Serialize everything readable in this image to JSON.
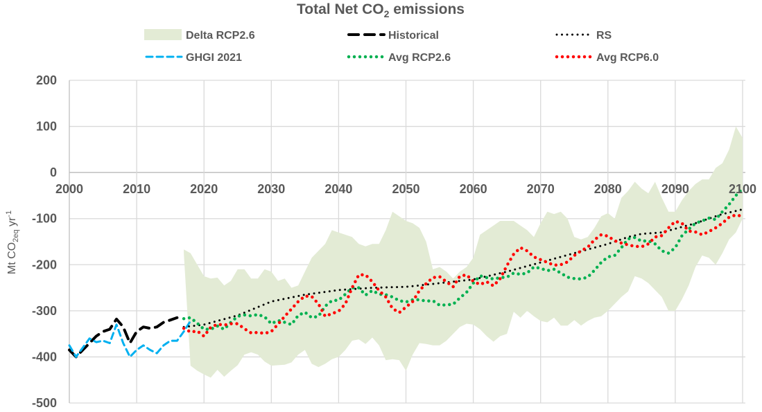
{
  "chart_data": {
    "type": "line",
    "title": "Total Net CO",
    "title_sub": "2",
    "title_rest": " emissions",
    "ylabel": {
      "main": "Mt CO",
      "sub": "2eq",
      "mid": " yr",
      "sup": "-1"
    },
    "xlabel": "",
    "xlim": [
      2000,
      2100
    ],
    "ylim": [
      -500,
      200
    ],
    "x_ticks": [
      "2000",
      "2010",
      "2020",
      "2030",
      "2040",
      "2050",
      "2060",
      "2070",
      "2080",
      "2090",
      "2100"
    ],
    "y_ticks": [
      "200",
      "100",
      "0",
      "-100",
      "-200",
      "-300",
      "-400",
      "-500"
    ],
    "grid": true,
    "legend_position": "top",
    "colors": {
      "band": "#e3ebd5",
      "historical": "#000000",
      "ghgi": "#00b0f0",
      "rs": "#000000",
      "avg26": "#00b050",
      "avg60": "#ff0000",
      "grid": "#d9d9d9",
      "text": "#595959"
    },
    "series": [
      {
        "name": "Delta RCP2.6",
        "kind": "band",
        "x": [
          2017,
          2018,
          2019,
          2020,
          2021,
          2022,
          2023,
          2024,
          2025,
          2026,
          2027,
          2028,
          2029,
          2030,
          2031,
          2032,
          2033,
          2034,
          2035,
          2036,
          2037,
          2038,
          2039,
          2040,
          2041,
          2042,
          2043,
          2044,
          2045,
          2046,
          2047,
          2048,
          2049,
          2050,
          2051,
          2052,
          2053,
          2054,
          2055,
          2056,
          2057,
          2058,
          2059,
          2060,
          2061,
          2062,
          2063,
          2064,
          2065,
          2066,
          2067,
          2068,
          2069,
          2070,
          2071,
          2072,
          2073,
          2074,
          2075,
          2076,
          2077,
          2078,
          2079,
          2080,
          2081,
          2082,
          2083,
          2084,
          2085,
          2086,
          2087,
          2088,
          2089,
          2090,
          2091,
          2092,
          2093,
          2094,
          2095,
          2096,
          2097,
          2098,
          2099,
          2100
        ],
        "upper": [
          -167,
          -175,
          -200,
          -225,
          -230,
          -228,
          -245,
          -235,
          -210,
          -210,
          -230,
          -230,
          -210,
          -215,
          -235,
          -230,
          -250,
          -245,
          -215,
          -185,
          -170,
          -155,
          -125,
          -130,
          -135,
          -140,
          -155,
          -160,
          -155,
          -155,
          -125,
          -85,
          -95,
          -105,
          -110,
          -120,
          -150,
          -210,
          -205,
          -215,
          -230,
          -215,
          -205,
          -185,
          -135,
          -125,
          -115,
          -105,
          -105,
          -105,
          -115,
          -125,
          -140,
          -110,
          -85,
          -90,
          -85,
          -100,
          -140,
          -145,
          -140,
          -120,
          -95,
          -88,
          -100,
          -55,
          -40,
          -20,
          -35,
          -45,
          -20,
          -55,
          -85,
          -85,
          -60,
          -40,
          -25,
          -15,
          -15,
          10,
          20,
          50,
          100,
          75
        ],
        "lower": [
          -175,
          -419,
          -430,
          -438,
          -445,
          -428,
          -443,
          -430,
          -418,
          -395,
          -390,
          -395,
          -410,
          -419,
          -418,
          -417,
          -412,
          -395,
          -385,
          -415,
          -422,
          -415,
          -405,
          -400,
          -385,
          -365,
          -362,
          -372,
          -358,
          -375,
          -407,
          -405,
          -407,
          -430,
          -395,
          -370,
          -372,
          -375,
          -375,
          -365,
          -350,
          -335,
          -328,
          -330,
          -340,
          -355,
          -367,
          -355,
          -350,
          -302,
          -315,
          -300,
          -312,
          -322,
          -325,
          -315,
          -332,
          -332,
          -320,
          -332,
          -322,
          -315,
          -312,
          -300,
          -285,
          -270,
          -258,
          -225,
          -230,
          -240,
          -255,
          -270,
          -300,
          -300,
          -275,
          -245,
          -205,
          -180,
          -185,
          -200,
          -175,
          -145,
          -130,
          -100
        ]
      },
      {
        "name": "Historical",
        "kind": "dash",
        "x": [
          2000,
          2001,
          2002,
          2003,
          2004,
          2005,
          2006,
          2007,
          2008,
          2009,
          2010,
          2011,
          2012,
          2013,
          2014,
          2015,
          2016
        ],
        "y": [
          -385,
          -400,
          -385,
          -370,
          -355,
          -345,
          -340,
          -318,
          -335,
          -370,
          -345,
          -335,
          -338,
          -335,
          -325,
          -320,
          -315
        ]
      },
      {
        "name": "RS",
        "kind": "dot",
        "x": [
          2017,
          2020,
          2025,
          2030,
          2035,
          2040,
          2045,
          2050,
          2052,
          2055,
          2060,
          2065,
          2070,
          2075,
          2080,
          2083,
          2085,
          2088,
          2090,
          2093,
          2095,
          2097,
          2100
        ],
        "y": [
          -335,
          -330,
          -310,
          -280,
          -265,
          -255,
          -250,
          -248,
          -245,
          -240,
          -232,
          -215,
          -195,
          -175,
          -155,
          -140,
          -133,
          -130,
          -122,
          -110,
          -100,
          -90,
          -80
        ]
      },
      {
        "name": "GHGI 2021",
        "kind": "dash",
        "x": [
          2000,
          2001,
          2002,
          2003,
          2004,
          2005,
          2006,
          2007,
          2008,
          2009,
          2010,
          2011,
          2012,
          2013,
          2014,
          2015,
          2016,
          2017,
          2018
        ],
        "y": [
          -375,
          -400,
          -380,
          -360,
          -368,
          -365,
          -370,
          -330,
          -370,
          -400,
          -385,
          -375,
          -385,
          -392,
          -375,
          -365,
          -365,
          -345,
          -322
        ]
      },
      {
        "name": "Avg RCP2.6",
        "kind": "dot",
        "x": [
          2017,
          2018,
          2019,
          2020,
          2021,
          2022,
          2023,
          2024,
          2025,
          2026,
          2027,
          2028,
          2029,
          2030,
          2031,
          2032,
          2033,
          2034,
          2035,
          2036,
          2037,
          2038,
          2039,
          2040,
          2041,
          2042,
          2043,
          2044,
          2045,
          2046,
          2047,
          2048,
          2049,
          2050,
          2051,
          2052,
          2053,
          2054,
          2055,
          2056,
          2057,
          2058,
          2059,
          2060,
          2061,
          2062,
          2063,
          2064,
          2065,
          2066,
          2067,
          2068,
          2069,
          2070,
          2071,
          2072,
          2073,
          2074,
          2075,
          2076,
          2077,
          2078,
          2079,
          2080,
          2081,
          2082,
          2083,
          2084,
          2085,
          2086,
          2087,
          2088,
          2089,
          2090,
          2091,
          2092,
          2093,
          2094,
          2095,
          2096,
          2097,
          2098,
          2099,
          2100
        ],
        "y": [
          -317,
          -315,
          -327,
          -340,
          -340,
          -333,
          -340,
          -325,
          -312,
          -309,
          -311,
          -308,
          -313,
          -328,
          -321,
          -325,
          -330,
          -310,
          -303,
          -315,
          -312,
          -290,
          -278,
          -277,
          -264,
          -250,
          -250,
          -266,
          -256,
          -264,
          -265,
          -270,
          -278,
          -281,
          -276,
          -276,
          -279,
          -278,
          -288,
          -287,
          -286,
          -272,
          -260,
          -240,
          -224,
          -228,
          -231,
          -228,
          -227,
          -218,
          -221,
          -218,
          -205,
          -208,
          -213,
          -210,
          -218,
          -227,
          -230,
          -231,
          -227,
          -212,
          -195,
          -183,
          -180,
          -163,
          -144,
          -141,
          -149,
          -148,
          -155,
          -170,
          -175,
          -163,
          -137,
          -123,
          -110,
          -105,
          -99,
          -102,
          -85,
          -69,
          -50,
          -35
        ]
      },
      {
        "name": "Avg RCP6.0",
        "kind": "dot",
        "x": [
          2017,
          2018,
          2019,
          2020,
          2021,
          2022,
          2023,
          2024,
          2025,
          2026,
          2027,
          2028,
          2029,
          2030,
          2031,
          2032,
          2033,
          2034,
          2035,
          2036,
          2037,
          2038,
          2039,
          2040,
          2041,
          2042,
          2043,
          2044,
          2045,
          2046,
          2047,
          2048,
          2049,
          2050,
          2051,
          2052,
          2053,
          2054,
          2055,
          2056,
          2057,
          2058,
          2059,
          2060,
          2061,
          2062,
          2063,
          2064,
          2065,
          2066,
          2067,
          2068,
          2069,
          2070,
          2071,
          2072,
          2073,
          2074,
          2075,
          2076,
          2077,
          2078,
          2079,
          2080,
          2081,
          2082,
          2083,
          2084,
          2085,
          2086,
          2087,
          2088,
          2089,
          2090,
          2091,
          2092,
          2093,
          2094,
          2095,
          2096,
          2097,
          2098,
          2099,
          2100
        ],
        "y": [
          -338,
          -346,
          -344,
          -355,
          -336,
          -329,
          -331,
          -328,
          -328,
          -339,
          -348,
          -347,
          -349,
          -345,
          -329,
          -312,
          -296,
          -280,
          -268,
          -269,
          -285,
          -312,
          -306,
          -301,
          -285,
          -250,
          -222,
          -222,
          -237,
          -256,
          -270,
          -295,
          -304,
          -292,
          -280,
          -256,
          -241,
          -228,
          -226,
          -237,
          -248,
          -225,
          -222,
          -236,
          -243,
          -237,
          -246,
          -230,
          -202,
          -177,
          -163,
          -170,
          -183,
          -189,
          -195,
          -201,
          -200,
          -194,
          -180,
          -170,
          -162,
          -146,
          -135,
          -138,
          -148,
          -153,
          -157,
          -160,
          -161,
          -155,
          -140,
          -137,
          -120,
          -106,
          -110,
          -127,
          -129,
          -135,
          -128,
          -120,
          -110,
          -97,
          -92,
          -95
        ]
      }
    ]
  }
}
